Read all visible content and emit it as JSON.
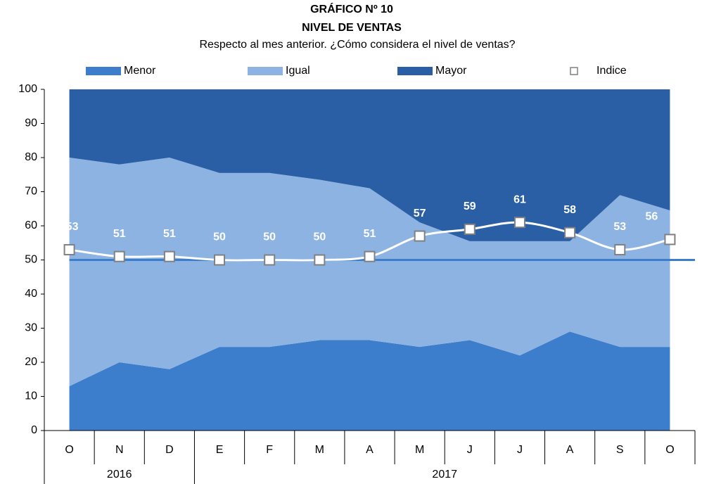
{
  "chart_data": {
    "type": "stacked-area",
    "title": "GRÁFICO Nº 10",
    "subtitle": "NIVEL DE VENTAS",
    "caption": "Respecto al mes anterior. ¿Cómo considera el nivel de ventas?",
    "categories": [
      "O",
      "N",
      "D",
      "E",
      "F",
      "M",
      "A",
      "M",
      "J",
      "J",
      "A",
      "S",
      "O"
    ],
    "years": [
      "2016",
      "2016",
      "2016",
      "2017",
      "2017",
      "2017",
      "2017",
      "2017",
      "2017",
      "2017",
      "2017",
      "2017",
      "2017"
    ],
    "series": [
      {
        "name": "Menor",
        "color": "#3c7dcc",
        "values": [
          13,
          20,
          18,
          24.5,
          24.5,
          26.5,
          26.5,
          24.5,
          26.5,
          22,
          29,
          24.5,
          24.5
        ]
      },
      {
        "name": "Igual",
        "color": "#8db3e2",
        "values": [
          67,
          58,
          62,
          51,
          51,
          47,
          44.5,
          36.5,
          29,
          33.5,
          26.5,
          44.5,
          40
        ]
      },
      {
        "name": "Mayor",
        "color": "#2a5fa5",
        "values": [
          20,
          22,
          20,
          24.5,
          24.5,
          26.5,
          29,
          39,
          44.5,
          44.5,
          44.5,
          31,
          35.5
        ]
      }
    ],
    "index": {
      "name": "Indice",
      "color": "#ffffff",
      "marker_color": "#808080",
      "values": [
        53,
        51,
        51,
        50,
        50,
        50,
        51,
        57,
        59,
        61,
        58,
        53,
        56
      ]
    },
    "hline": 50,
    "hline_color": "#3c7dcc",
    "ylim": [
      0,
      100
    ],
    "yticks": [
      0,
      10,
      20,
      30,
      40,
      50,
      60,
      70,
      80,
      90,
      100
    ]
  }
}
